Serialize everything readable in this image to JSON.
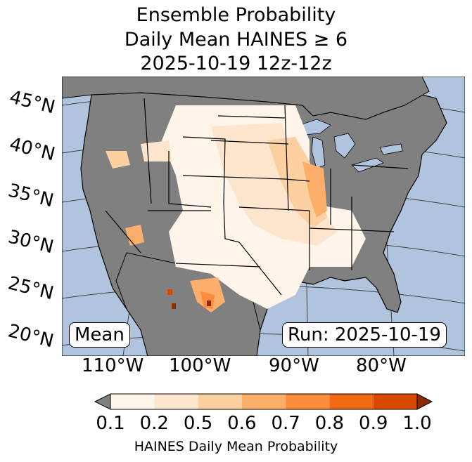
{
  "title": {
    "line1": "Ensemble Probability",
    "line2": "Daily Mean HAINES ≥ 6",
    "line3": "2025-10-19 12z-12z"
  },
  "map": {
    "latitude_labels": [
      "45°N",
      "40°N",
      "35°N",
      "30°N",
      "25°N",
      "20°N"
    ],
    "longitude_labels": [
      "110°W",
      "100°W",
      "90°W",
      "80°W"
    ],
    "mean_label": "Mean",
    "run_label": "Run: 2025-10-19",
    "colors": {
      "ocean": "#b0c4de",
      "land": "#808080",
      "border": "#000000",
      "graticule": "#404040"
    }
  },
  "colorbar": {
    "ticks": [
      "0.1",
      "0.2",
      "0.5",
      "0.6",
      "0.7",
      "0.8",
      "0.9",
      "1.0"
    ],
    "colors": [
      "#fff5eb",
      "#fee6ce",
      "#fdd0a2",
      "#fdae6b",
      "#fd8d3c",
      "#f16913",
      "#d94801",
      "#8c2d04"
    ],
    "under_color": "#808080",
    "label": "HAINES Daily Mean Probability"
  }
}
